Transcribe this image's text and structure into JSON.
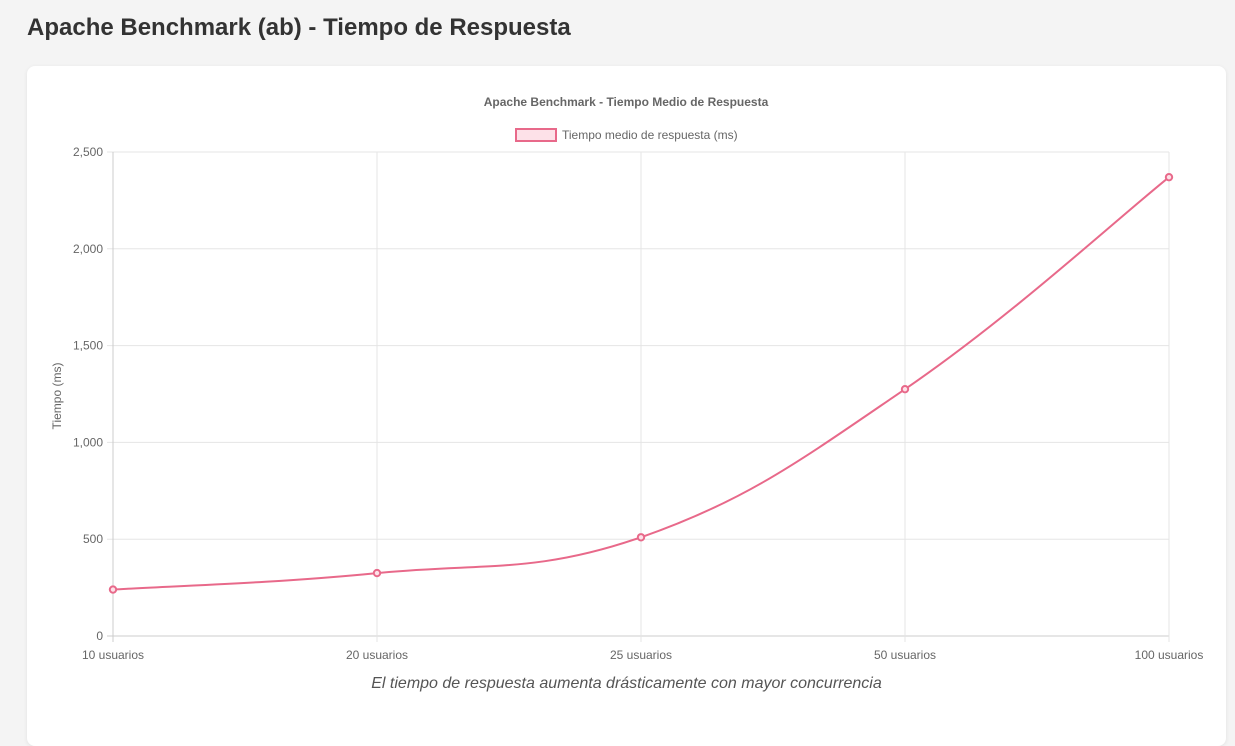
{
  "page": {
    "title": "Apache Benchmark (ab) - Tiempo de Respuesta"
  },
  "caption": "El tiempo de respuesta aumenta drásticamente con mayor concurrencia",
  "chart_data": {
    "type": "line",
    "title": "Apache Benchmark - Tiempo Medio de Respuesta",
    "xlabel": "",
    "ylabel": "Tiempo (ms)",
    "categories": [
      "10 usuarios",
      "20 usuarios",
      "25 usuarios",
      "50 usuarios",
      "100 usuarios"
    ],
    "series": [
      {
        "name": "Tiempo medio de respuesta (ms)",
        "values": [
          240,
          325,
          510,
          1275,
          2370
        ],
        "color": "#e8698a",
        "fill": "#fde1e8"
      }
    ],
    "ylim": [
      0,
      2500
    ],
    "yticks": [
      0,
      500,
      1000,
      1500,
      2000,
      2500
    ],
    "ytick_labels": [
      "0",
      "500",
      "1,000",
      "1,500",
      "2,000",
      "2,500"
    ],
    "grid": true,
    "legend_position": "top-center"
  }
}
